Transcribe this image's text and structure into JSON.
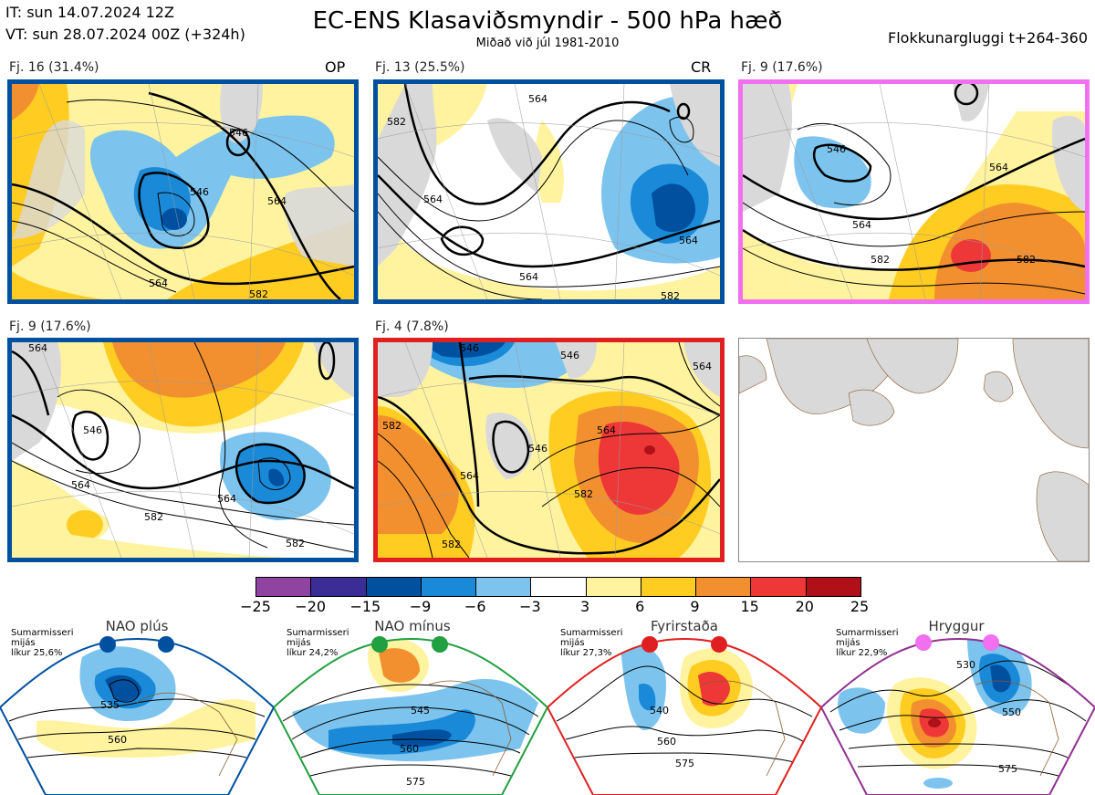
{
  "header": {
    "it_line": "IT: sun 14.07.2024 12Z",
    "vt_line": "VT: sun 28.07.2024 00Z  (+324h)",
    "title": "EC-ENS Klasaviðsmyndir - 500 hPa hæð",
    "subtitle": "Miðað við júl 1981-2010",
    "window": "Flokkunargluggi t+264-360"
  },
  "colors": {
    "blue_frame": "#0050a0",
    "pink_frame": "#f070f0",
    "red_frame": "#e02020",
    "green_frame": "#20a040",
    "purple_frame": "#903090",
    "land": "#d9d9d9",
    "coast": "#8b5a2b"
  },
  "panels": [
    {
      "label": "Fj. 16 (31.4%)",
      "code": "OP",
      "frame": "blue",
      "contours": [
        "546",
        "546",
        "564",
        "564",
        "582"
      ]
    },
    {
      "label": "Fj. 13 (25.5%)",
      "code": "CR",
      "frame": "blue",
      "contours": [
        "564",
        "582",
        "564",
        "564",
        "564",
        "582"
      ]
    },
    {
      "label": "Fj. 9 (17.6%)",
      "code": "",
      "frame": "pink",
      "contours": [
        "546",
        "564",
        "564",
        "582",
        "582"
      ]
    },
    {
      "label": "Fj. 9 (17.6%)",
      "code": "",
      "frame": "blue",
      "contours": [
        "564",
        "546",
        "564",
        "564",
        "582",
        "582"
      ]
    },
    {
      "label": "Fj. 4 (7.8%)",
      "code": "",
      "frame": "red",
      "contours": [
        "546",
        "546",
        "582",
        "564",
        "546",
        "564",
        "582",
        "582",
        "564"
      ]
    }
  ],
  "colorbar": {
    "ticks": [
      "−25",
      "−20",
      "−15",
      "−9",
      "−6",
      "−3",
      "3",
      "6",
      "9",
      "15",
      "20",
      "25"
    ],
    "colors": [
      "#8e44a0",
      "#3c2c96",
      "#0050a0",
      "#1a8ad8",
      "#7cc4ee",
      "#ffffff",
      "#fff3a0",
      "#ffcc22",
      "#f29030",
      "#ee3838",
      "#b01018"
    ]
  },
  "regimes": [
    {
      "name": "NAO plús",
      "season": "Sumarmisseri",
      "smooth": "mijás",
      "prob": "líkur 25,6%",
      "frame": "blue",
      "contours": [
        "535",
        "560"
      ]
    },
    {
      "name": "NAO mínus",
      "season": "Sumarmisseri",
      "smooth": "mijás",
      "prob": "líkur 24,2%",
      "frame": "green",
      "contours": [
        "545",
        "560",
        "575"
      ]
    },
    {
      "name": "Fyrirstaða",
      "season": "Sumarmisseri",
      "smooth": "mijás",
      "prob": "líkur 27,3%",
      "frame": "red",
      "contours": [
        "540",
        "560",
        "575"
      ]
    },
    {
      "name": "Hryggur",
      "season": "Sumarmisseri",
      "smooth": "mijás",
      "prob": "líkur 22,9%",
      "frame": "purple",
      "contours": [
        "530",
        "550",
        "575"
      ]
    }
  ]
}
